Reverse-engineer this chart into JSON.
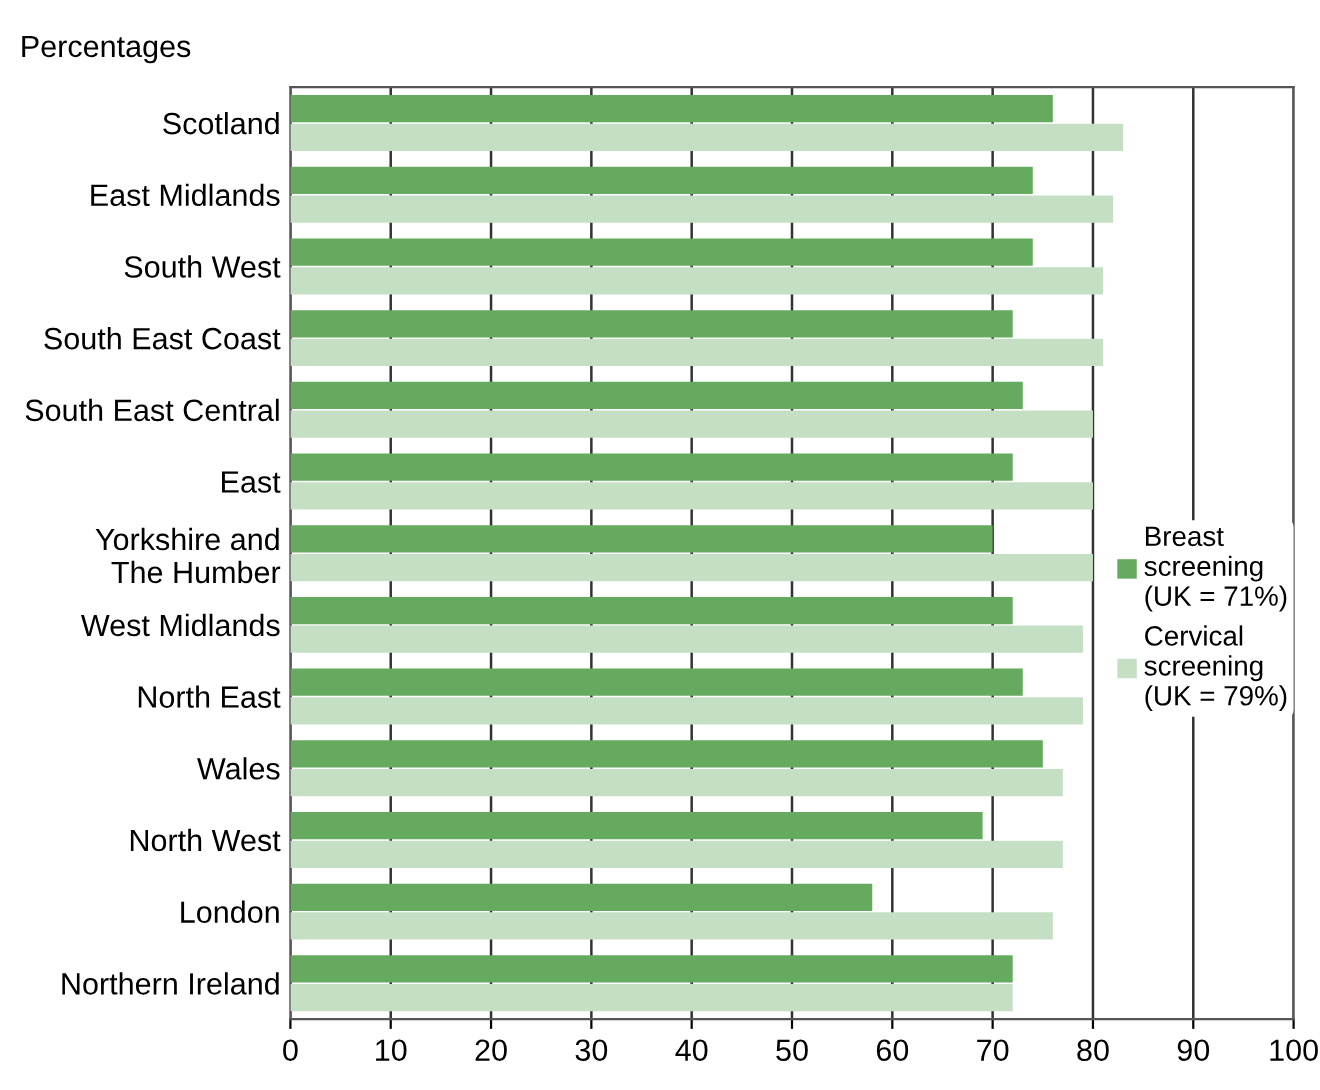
{
  "chart_data": {
    "type": "bar",
    "orientation": "horizontal",
    "title": "Percentages",
    "categories": [
      "Scotland",
      "East Midlands",
      "South West",
      "South East Coast",
      "South East Central",
      "East",
      "Yorkshire and\nThe Humber",
      "West Midlands",
      "North East",
      "Wales",
      "North West",
      "London",
      "Northern Ireland"
    ],
    "series": [
      {
        "name": "Breast\nscreening\n(UK = 71%)",
        "color": "#66aa5f",
        "values": [
          76,
          74,
          74,
          72,
          73,
          72,
          70,
          72,
          73,
          75,
          69,
          58,
          72
        ]
      },
      {
        "name": "Cervical\nscreening\n(UK = 79%)",
        "color": "#c5dfc5",
        "values": [
          83,
          82,
          81,
          81,
          80,
          80,
          80,
          79,
          79,
          77,
          77,
          76,
          72
        ]
      }
    ],
    "xlim": [
      0,
      100
    ],
    "xticks": [
      0,
      10,
      20,
      30,
      40,
      50,
      60,
      70,
      80,
      90,
      100
    ],
    "grid": "x",
    "legend": "right"
  }
}
